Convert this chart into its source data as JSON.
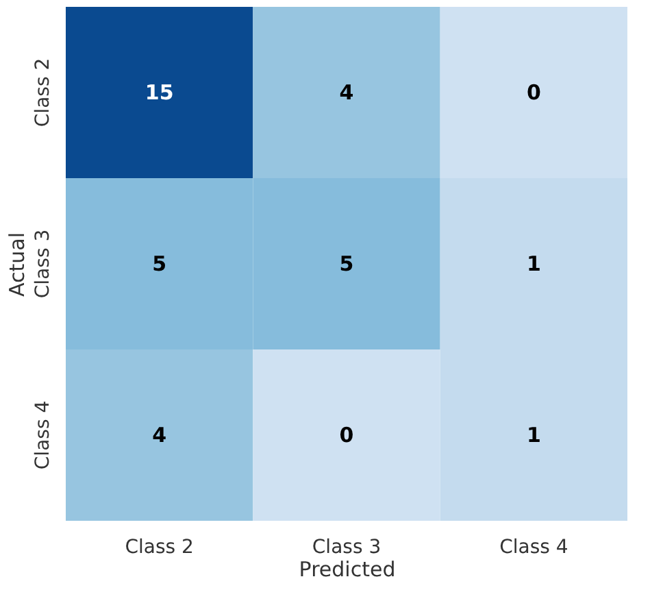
{
  "chart_data": {
    "type": "heatmap",
    "xlabel": "Predicted",
    "ylabel": "Actual",
    "categories": [
      "Class 2",
      "Class 3",
      "Class 4"
    ],
    "y_categories": [
      "Class 2",
      "Class 3",
      "Class 4"
    ],
    "cells": [
      [
        15,
        4,
        0
      ],
      [
        5,
        5,
        1
      ],
      [
        4,
        0,
        1
      ]
    ],
    "data_labels": true
  }
}
